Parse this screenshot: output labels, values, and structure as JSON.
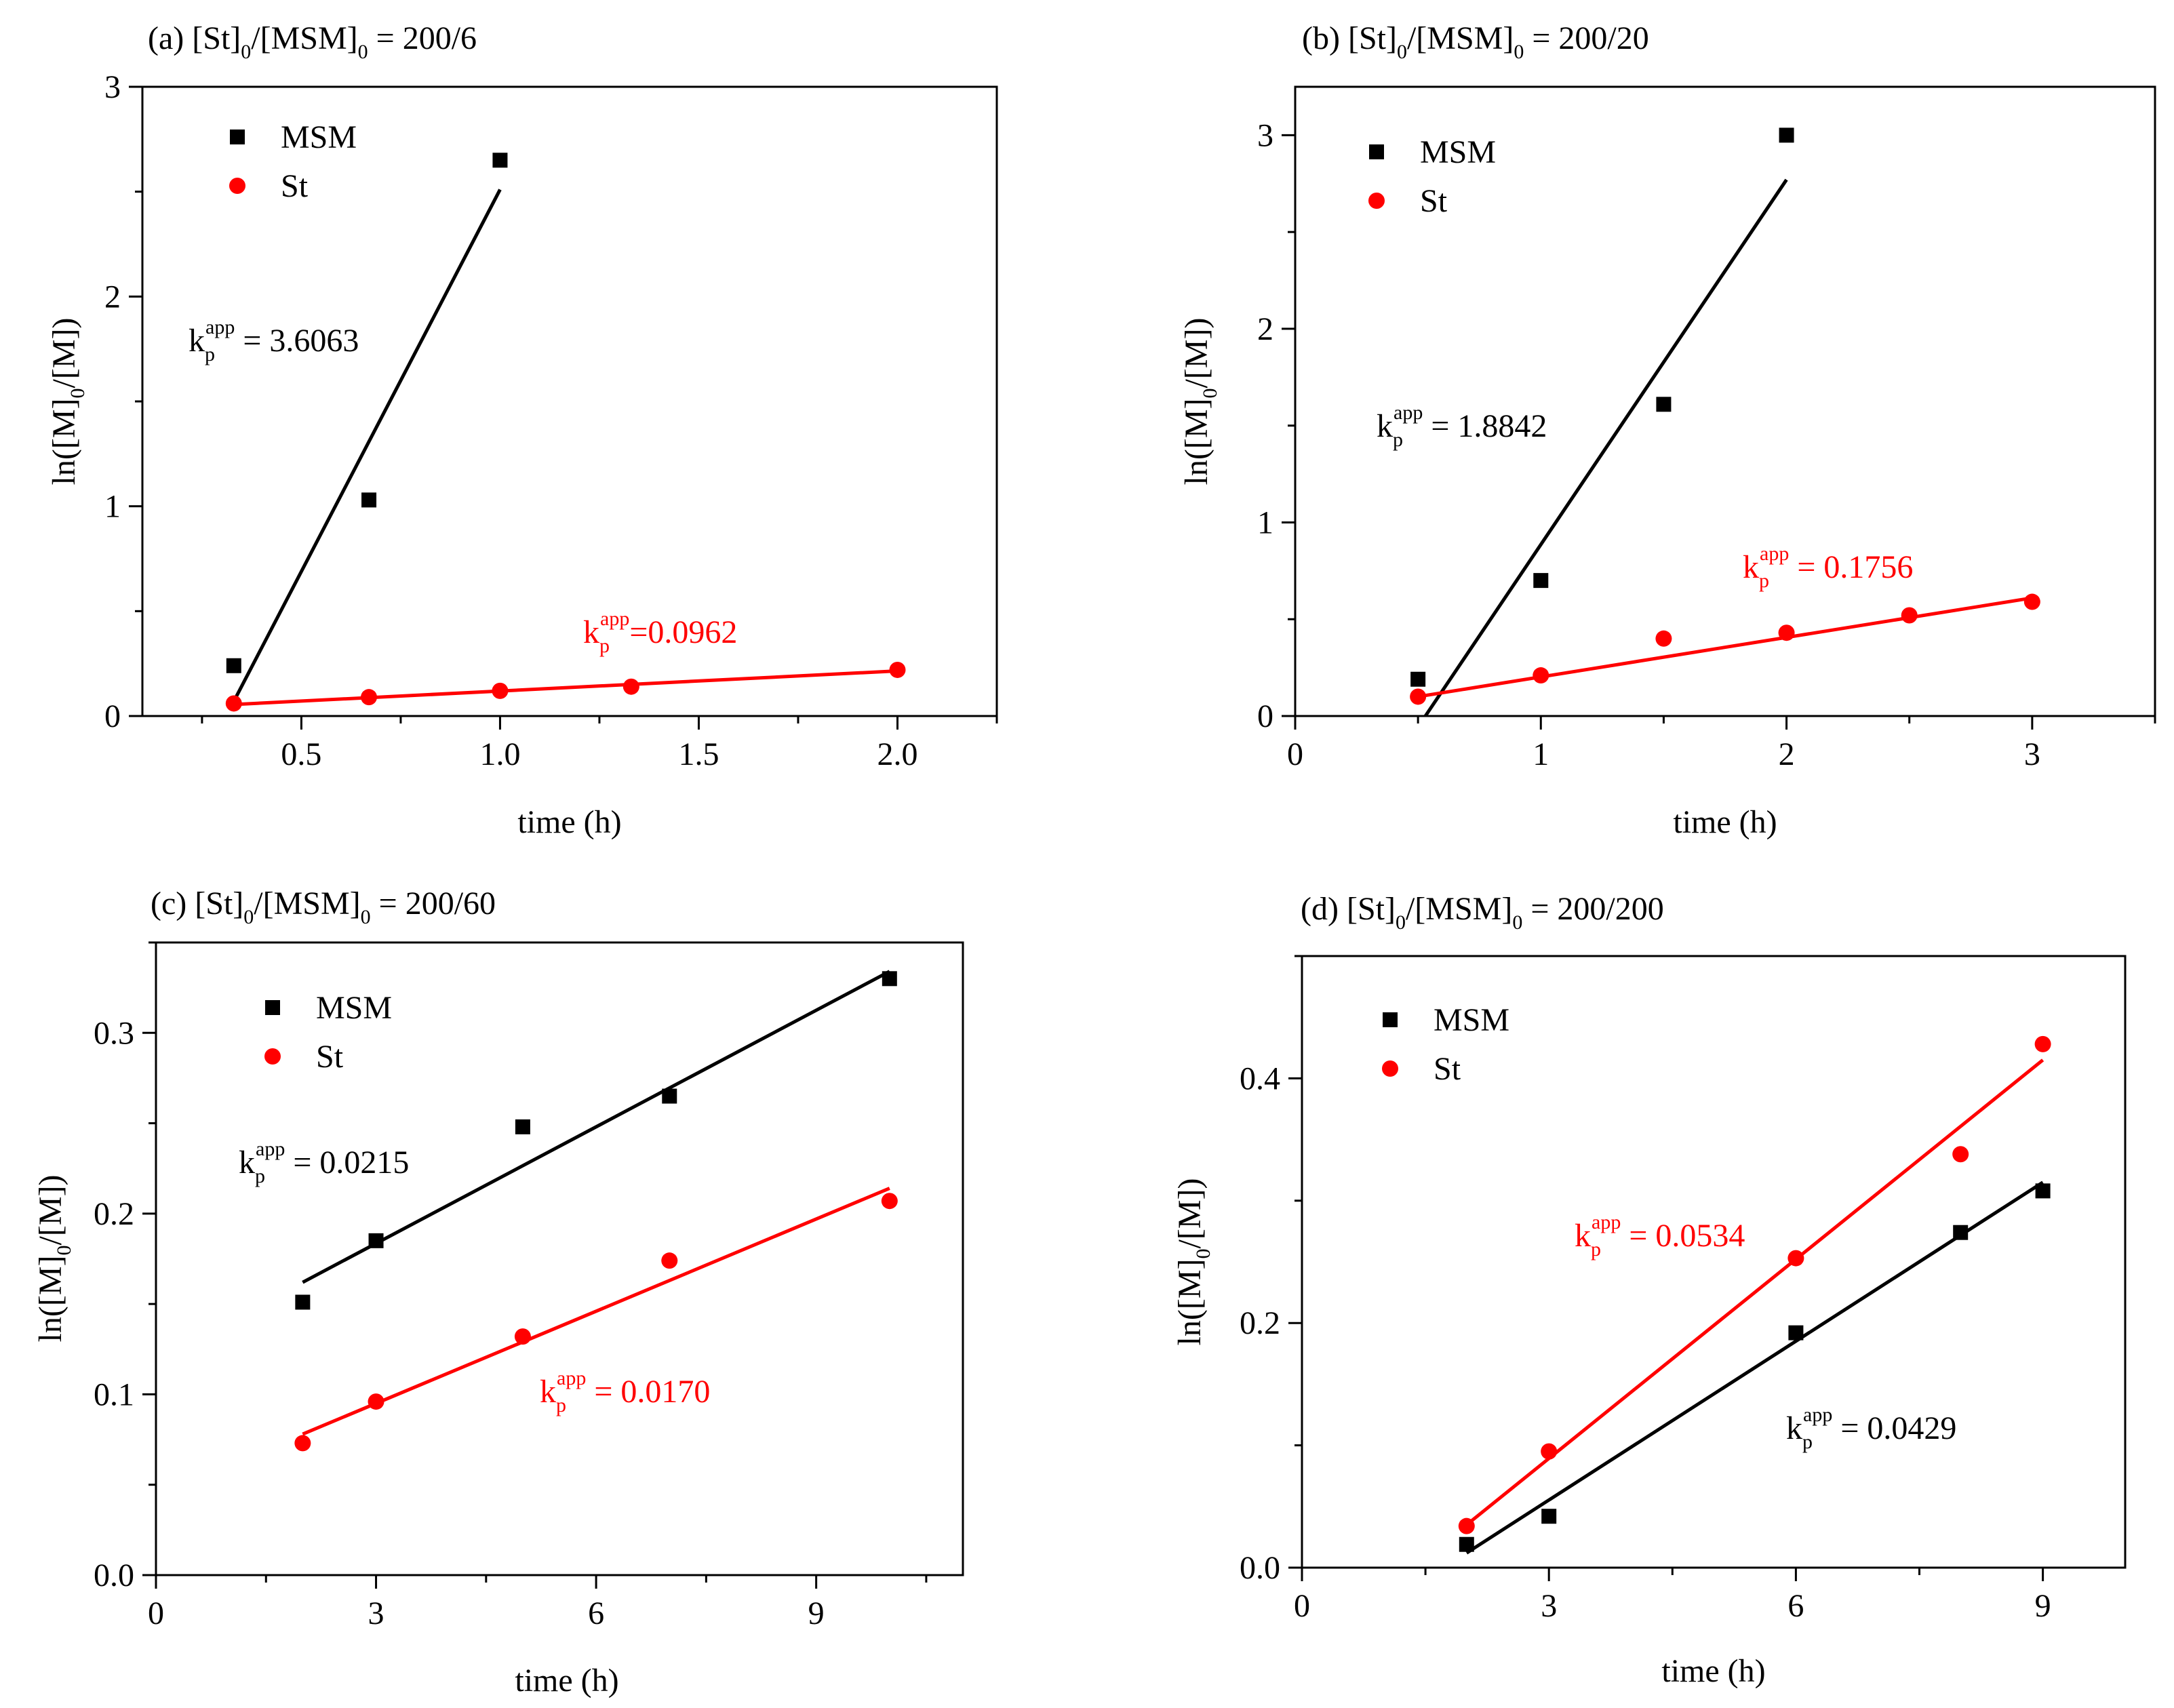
{
  "figure": {
    "background": "#ffffff",
    "msm_color": "#000000",
    "st_color": "#ff0000"
  },
  "chart_data": [
    {
      "id": "a",
      "type": "scatter",
      "title": "(a)  [St]0/[MSM]0 = 200/6",
      "title_parts": {
        "prefix": "(a)  [St]",
        "sub1": "0",
        "mid": "/[MSM]",
        "sub2": "0",
        "suffix": " = 200/6"
      },
      "xlabel": "time (h)",
      "ylabel": "ln([M]0/[M])",
      "xlim": [
        0.1,
        2.25
      ],
      "ylim": [
        0,
        3
      ],
      "xticks": [
        0.5,
        1.0,
        1.5,
        2.0
      ],
      "xtick_labels": [
        "0.5",
        "1.0",
        "1.5",
        "2.0"
      ],
      "yticks": [
        0,
        1,
        2,
        3
      ],
      "ytick_labels": [
        "0",
        "1",
        "2",
        "3"
      ],
      "legend": {
        "location": "top-left",
        "entries": [
          "MSM",
          "St"
        ]
      },
      "series": [
        {
          "name": "MSM",
          "marker": "square",
          "color": "#000000",
          "x": [
            0.33,
            0.67,
            1.0
          ],
          "y": [
            0.24,
            1.03,
            2.65
          ],
          "fit": {
            "x": [
              0.33,
              1.0
            ],
            "y": [
              0.07,
              2.51
            ]
          }
        },
        {
          "name": "St",
          "marker": "circle",
          "color": "#ff0000",
          "x": [
            0.33,
            0.67,
            1.0,
            1.33,
            2.0
          ],
          "y": [
            0.06,
            0.09,
            0.12,
            0.14,
            0.22
          ],
          "fit": {
            "x": [
              0.33,
              2.0
            ],
            "y": [
              0.055,
              0.215
            ]
          }
        }
      ],
      "annotations": [
        {
          "series": "MSM",
          "k": "k",
          "sub": "p",
          "sup": "app",
          "value": " = 3.6063"
        },
        {
          "series": "St",
          "k": "k",
          "sub": "p",
          "sup": "app",
          "value": "=0.0962"
        }
      ]
    },
    {
      "id": "b",
      "type": "scatter",
      "title": "(b)  [St]0/[MSM]0 = 200/20",
      "title_parts": {
        "prefix": "(b)  [St]",
        "sub1": "0",
        "mid": "/[MSM]",
        "sub2": "0",
        "suffix": " = 200/20"
      },
      "xlabel": "time (h)",
      "ylabel": "ln([M]0/[M])",
      "xlim": [
        0,
        3.5
      ],
      "ylim": [
        0,
        3.25
      ],
      "xticks": [
        0,
        1,
        2,
        3
      ],
      "xtick_labels": [
        "0",
        "1",
        "2",
        "3"
      ],
      "yticks": [
        0,
        1,
        2,
        3
      ],
      "ytick_labels": [
        "0",
        "1",
        "2",
        "3"
      ],
      "legend": {
        "location": "top-left",
        "entries": [
          "MSM",
          "St"
        ]
      },
      "series": [
        {
          "name": "MSM",
          "marker": "square",
          "color": "#000000",
          "x": [
            0.5,
            1.0,
            1.5,
            2.0
          ],
          "y": [
            0.19,
            0.7,
            1.61,
            3.0
          ],
          "fit": {
            "x": [
              0.53,
              2.0
            ],
            "y": [
              0.0,
              2.77
            ]
          }
        },
        {
          "name": "St",
          "marker": "circle",
          "color": "#ff0000",
          "x": [
            0.5,
            1.0,
            1.5,
            2.0,
            2.5,
            3.0
          ],
          "y": [
            0.1,
            0.21,
            0.4,
            0.43,
            0.52,
            0.59
          ],
          "fit": {
            "x": [
              0.5,
              3.0
            ],
            "y": [
              0.1,
              0.61
            ]
          }
        }
      ],
      "annotations": [
        {
          "series": "MSM",
          "k": "k",
          "sub": "p",
          "sup": "app",
          "value": " = 1.8842"
        },
        {
          "series": "St",
          "k": "k",
          "sub": "p",
          "sup": "app",
          "value": " = 0.1756"
        }
      ]
    },
    {
      "id": "c",
      "type": "scatter",
      "title": "(c)  [St]0/[MSM]0 = 200/60",
      "title_parts": {
        "prefix": "(c)  [St]",
        "sub1": "0",
        "mid": "/[MSM]",
        "sub2": "0",
        "suffix": " = 200/60"
      },
      "xlabel": "time (h)",
      "ylabel": "ln([M]0/[M])",
      "xlim": [
        0,
        11
      ],
      "ylim": [
        0,
        0.35
      ],
      "xticks": [
        0,
        3,
        6,
        9
      ],
      "xtick_labels": [
        "0",
        "3",
        "6",
        "9"
      ],
      "yticks": [
        0,
        0.1,
        0.2,
        0.3
      ],
      "ytick_labels": [
        "0.0",
        "0.1",
        "0.2",
        "0.3"
      ],
      "legend": {
        "location": "top-left",
        "entries": [
          "MSM",
          "St"
        ]
      },
      "series": [
        {
          "name": "MSM",
          "marker": "square",
          "color": "#000000",
          "x": [
            2,
            3,
            5,
            7,
            10
          ],
          "y": [
            0.151,
            0.185,
            0.248,
            0.265,
            0.33
          ],
          "fit": {
            "x": [
              2,
              10
            ],
            "y": [
              0.162,
              0.334
            ]
          }
        },
        {
          "name": "St",
          "marker": "circle",
          "color": "#ff0000",
          "x": [
            2,
            3,
            5,
            7,
            10
          ],
          "y": [
            0.073,
            0.096,
            0.132,
            0.174,
            0.207
          ],
          "fit": {
            "x": [
              2,
              10
            ],
            "y": [
              0.078,
              0.214
            ]
          }
        }
      ],
      "annotations": [
        {
          "series": "MSM",
          "k": "k",
          "sub": "p",
          "sup": "app",
          "value": " = 0.0215"
        },
        {
          "series": "St",
          "k": "k",
          "sub": "p",
          "sup": "app",
          "value": " = 0.0170"
        }
      ]
    },
    {
      "id": "d",
      "type": "scatter",
      "title": "(d)  [St]0/[MSM]0 = 200/200",
      "title_parts": {
        "prefix": "(d)  [St]",
        "sub1": "0",
        "mid": "/[MSM]",
        "sub2": "0",
        "suffix": " = 200/200"
      },
      "xlabel": "time (h)",
      "ylabel": "ln([M]0/[M])",
      "xlim": [
        0,
        10
      ],
      "ylim": [
        0,
        0.5
      ],
      "xticks": [
        0,
        3,
        6,
        9
      ],
      "xtick_labels": [
        "0",
        "3",
        "6",
        "9"
      ],
      "yticks": [
        0,
        0.2,
        0.4
      ],
      "ytick_labels": [
        "0.0",
        "0.2",
        "0.4"
      ],
      "legend": {
        "location": "top-left",
        "entries": [
          "MSM",
          "St"
        ]
      },
      "series": [
        {
          "name": "MSM",
          "marker": "square",
          "color": "#000000",
          "x": [
            2,
            3,
            6,
            8,
            9
          ],
          "y": [
            0.019,
            0.042,
            0.192,
            0.274,
            0.308
          ],
          "fit": {
            "x": [
              2,
              9
            ],
            "y": [
              0.012,
              0.315
            ]
          }
        },
        {
          "name": "St",
          "marker": "circle",
          "color": "#ff0000",
          "x": [
            2,
            3,
            6,
            8,
            9
          ],
          "y": [
            0.034,
            0.095,
            0.253,
            0.338,
            0.428
          ],
          "fit": {
            "x": [
              2,
              9
            ],
            "y": [
              0.035,
              0.415
            ]
          }
        }
      ],
      "annotations": [
        {
          "series": "St",
          "k": "k",
          "sub": "p",
          "sup": "app",
          "value": " = 0.0534"
        },
        {
          "series": "MSM",
          "k": "k",
          "sub": "p",
          "sup": "app",
          "value": " = 0.0429"
        }
      ]
    }
  ]
}
